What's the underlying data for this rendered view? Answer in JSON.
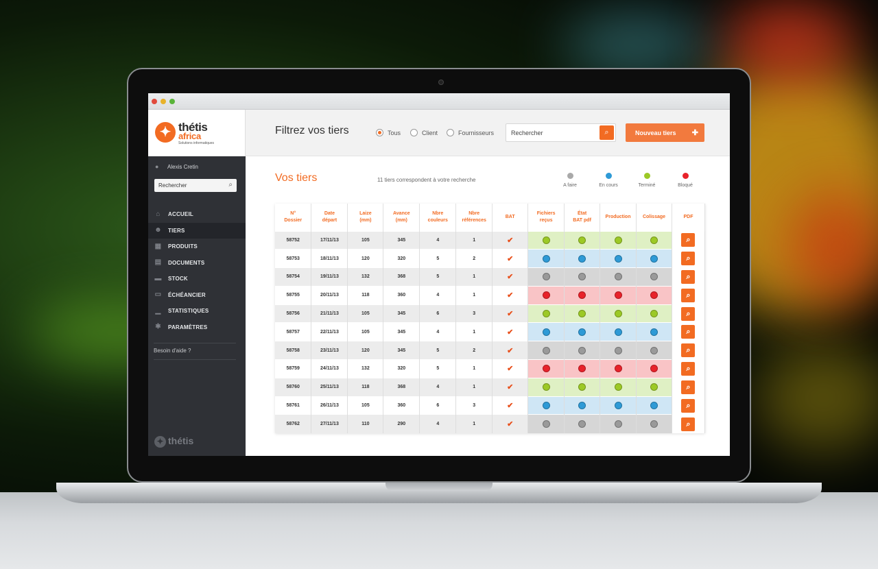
{
  "window": {
    "title": ""
  },
  "brand": {
    "name_line1": "thétis",
    "name_line2": "africa",
    "tagline": "Solutions informatiques",
    "footer": "thétis",
    "accent": "#f26b22"
  },
  "sidebar": {
    "user": "Alexis Cretin",
    "search_placeholder": "Rechercher",
    "items": [
      {
        "label": "ACCUEIL",
        "icon": "home-icon"
      },
      {
        "label": "TIERS",
        "icon": "users-icon",
        "active": true
      },
      {
        "label": "PRODUITS",
        "icon": "grid-icon"
      },
      {
        "label": "DOCUMENTS",
        "icon": "document-icon"
      },
      {
        "label": "STOCK",
        "icon": "box-icon"
      },
      {
        "label": "ÉCHÉANCIER",
        "icon": "calendar-icon"
      },
      {
        "label": "STATISTIQUES",
        "icon": "chart-icon"
      },
      {
        "label": "PARAMÈTRES",
        "icon": "gear-icon"
      }
    ],
    "help": "Besoin d'aide ?"
  },
  "header": {
    "title": "Filtrez vos tiers",
    "radios": [
      {
        "label": "Tous",
        "checked": true
      },
      {
        "label": "Client",
        "checked": false
      },
      {
        "label": "Fournisseurs",
        "checked": false
      }
    ],
    "search_placeholder": "Rechercher",
    "new_button": "Nouveau tiers"
  },
  "main": {
    "title": "Vos tiers",
    "count_text": "11 tiers correspondent à votre recherche",
    "legend": [
      {
        "label": "A faire",
        "color": "#a9a9a9"
      },
      {
        "label": "En cours",
        "color": "#2e9ad6"
      },
      {
        "label": "Terminé",
        "color": "#9cc926"
      },
      {
        "label": "Bloqué",
        "color": "#e8222a"
      }
    ]
  },
  "table": {
    "columns": [
      {
        "line1": "N°",
        "line2": "Dossier"
      },
      {
        "line1": "Date",
        "line2": "départ"
      },
      {
        "line1": "Laize",
        "line2": "(mm)"
      },
      {
        "line1": "Avance",
        "line2": "(mm)"
      },
      {
        "line1": "Nbre",
        "line2": "couleurs"
      },
      {
        "line1": "Nbre",
        "line2": "références"
      },
      {
        "line1": "BAT",
        "line2": ""
      },
      {
        "line1": "Fichiers",
        "line2": "reçus"
      },
      {
        "line1": "État",
        "line2": "BAT pdf"
      },
      {
        "line1": "Production",
        "line2": ""
      },
      {
        "line1": "Colissage",
        "line2": ""
      },
      {
        "line1": "PDF",
        "line2": ""
      }
    ],
    "status_colors": {
      "done": {
        "dot": "#9cc926",
        "bg": "#dff0c4"
      },
      "progress": {
        "dot": "#2e9ad6",
        "bg": "#cfe6f5"
      },
      "todo": {
        "dot": "#9a9a9a",
        "bg": "#d6d6d6"
      },
      "blocked": {
        "dot": "#e8222a",
        "bg": "#f9c4c6"
      }
    },
    "rows": [
      {
        "dossier": "58752",
        "date": "17/11/13",
        "laize": "105",
        "avance": "345",
        "couleurs": "4",
        "refs": "1",
        "bat": true,
        "status": "done"
      },
      {
        "dossier": "58753",
        "date": "18/11/13",
        "laize": "120",
        "avance": "320",
        "couleurs": "5",
        "refs": "2",
        "bat": true,
        "status": "progress"
      },
      {
        "dossier": "58754",
        "date": "19/11/13",
        "laize": "132",
        "avance": "368",
        "couleurs": "5",
        "refs": "1",
        "bat": true,
        "status": "todo"
      },
      {
        "dossier": "58755",
        "date": "20/11/13",
        "laize": "118",
        "avance": "360",
        "couleurs": "4",
        "refs": "1",
        "bat": true,
        "status": "blocked"
      },
      {
        "dossier": "58756",
        "date": "21/11/13",
        "laize": "105",
        "avance": "345",
        "couleurs": "6",
        "refs": "3",
        "bat": true,
        "status": "done"
      },
      {
        "dossier": "58757",
        "date": "22/11/13",
        "laize": "105",
        "avance": "345",
        "couleurs": "4",
        "refs": "1",
        "bat": true,
        "status": "progress"
      },
      {
        "dossier": "58758",
        "date": "23/11/13",
        "laize": "120",
        "avance": "345",
        "couleurs": "5",
        "refs": "2",
        "bat": true,
        "status": "todo"
      },
      {
        "dossier": "58759",
        "date": "24/11/13",
        "laize": "132",
        "avance": "320",
        "couleurs": "5",
        "refs": "1",
        "bat": true,
        "status": "blocked"
      },
      {
        "dossier": "58760",
        "date": "25/11/13",
        "laize": "118",
        "avance": "368",
        "couleurs": "4",
        "refs": "1",
        "bat": true,
        "status": "done"
      },
      {
        "dossier": "58761",
        "date": "26/11/13",
        "laize": "105",
        "avance": "360",
        "couleurs": "6",
        "refs": "3",
        "bat": true,
        "status": "progress"
      },
      {
        "dossier": "58762",
        "date": "27/11/13",
        "laize": "110",
        "avance": "290",
        "couleurs": "4",
        "refs": "1",
        "bat": true,
        "status": "todo"
      }
    ]
  }
}
